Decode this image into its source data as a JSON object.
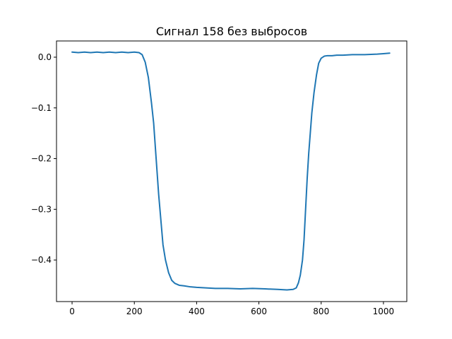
{
  "chart_data": {
    "type": "line",
    "title": "Сигнал 158 без выбросов",
    "xlabel": "",
    "ylabel": "",
    "xlim": [
      -50,
      1075
    ],
    "ylim": [
      -0.482,
      0.032
    ],
    "grid": false,
    "legend": "none",
    "x_ticks": [
      0,
      200,
      400,
      600,
      800,
      1000
    ],
    "x_tick_labels": [
      "0",
      "200",
      "400",
      "600",
      "800",
      "1000"
    ],
    "y_ticks": [
      0.0,
      -0.1,
      -0.2,
      -0.3,
      -0.4
    ],
    "y_tick_labels": [
      "0.0",
      "−0.1",
      "−0.2",
      "−0.3",
      "−0.4"
    ],
    "colors": {
      "series": "#1f77b4",
      "axes": "#000000",
      "background": "#ffffff"
    },
    "series": [
      {
        "x": [
          0,
          20,
          40,
          60,
          80,
          100,
          120,
          140,
          160,
          180,
          200,
          215,
          225,
          235,
          245,
          255,
          262,
          270,
          278,
          285,
          292,
          300,
          310,
          320,
          330,
          345,
          360,
          380,
          400,
          430,
          460,
          500,
          540,
          580,
          620,
          660,
          690,
          710,
          720,
          727,
          733,
          740,
          745,
          750,
          755,
          760,
          765,
          770,
          777,
          785,
          792,
          800,
          810,
          820,
          835,
          850,
          870,
          900,
          940,
          980,
          1000,
          1020
        ],
        "y": [
          0.01,
          0.009,
          0.01,
          0.009,
          0.01,
          0.009,
          0.01,
          0.009,
          0.01,
          0.009,
          0.01,
          0.009,
          0.005,
          -0.01,
          -0.04,
          -0.09,
          -0.13,
          -0.2,
          -0.27,
          -0.32,
          -0.37,
          -0.4,
          -0.425,
          -0.44,
          -0.446,
          -0.45,
          -0.451,
          -0.453,
          -0.454,
          -0.455,
          -0.456,
          -0.456,
          -0.457,
          -0.456,
          -0.457,
          -0.458,
          -0.459,
          -0.458,
          -0.455,
          -0.445,
          -0.43,
          -0.4,
          -0.36,
          -0.3,
          -0.24,
          -0.19,
          -0.15,
          -0.11,
          -0.07,
          -0.035,
          -0.012,
          -0.002,
          0.002,
          0.003,
          0.003,
          0.004,
          0.004,
          0.005,
          0.005,
          0.006,
          0.007,
          0.008
        ]
      }
    ]
  }
}
